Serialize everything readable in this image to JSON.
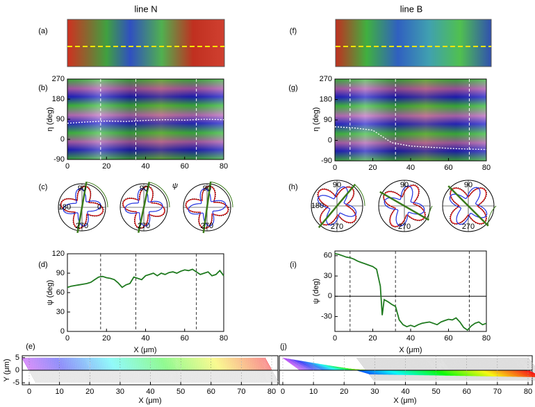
{
  "chart_data": [
    {
      "type": "image",
      "title": "line N",
      "label": "(a)"
    },
    {
      "type": "heatmap",
      "label": "(b)",
      "ylabel": "η (deg)",
      "xlim": [
        0,
        80
      ],
      "xticks": [
        0,
        20,
        40,
        60,
        80
      ],
      "ylim": [
        -90,
        270
      ],
      "yticks": [
        -90,
        0,
        90,
        180,
        270
      ],
      "markers": [
        17,
        35,
        66
      ],
      "series": [
        {
          "color": "#ffffff",
          "x": [
            0,
            10,
            20,
            30,
            40,
            50,
            60,
            70,
            80
          ],
          "values": [
            72,
            78,
            82,
            80,
            85,
            88,
            86,
            90,
            88
          ]
        }
      ]
    },
    {
      "type": "polar",
      "label": "(c)",
      "annotation": "ψ",
      "circles": [
        {
          "angles": [
            90,
            180,
            0,
            270
          ]
        },
        {
          "angles": [
            90,
            270
          ]
        },
        {
          "angles": [
            90,
            270
          ]
        }
      ]
    },
    {
      "type": "line",
      "label": "(d)",
      "ylabel": "ψ (deg)",
      "xlabel": "X (μm)",
      "xlim": [
        0,
        80
      ],
      "xticks": [
        0,
        20,
        40,
        60,
        80
      ],
      "ylim": [
        0,
        120
      ],
      "yticks": [
        0,
        30,
        60,
        90,
        120
      ],
      "color": "#1f7a1f",
      "markers": [
        17,
        35,
        66
      ],
      "x": [
        0,
        2,
        4,
        6,
        8,
        10,
        12,
        14,
        16,
        18,
        20,
        22,
        24,
        26,
        28,
        30,
        32,
        34,
        36,
        38,
        40,
        42,
        44,
        46,
        48,
        50,
        52,
        54,
        56,
        58,
        60,
        62,
        64,
        66,
        68,
        70,
        72,
        74,
        76,
        78,
        80
      ],
      "values": [
        68,
        70,
        71,
        72,
        73,
        74,
        76,
        80,
        84,
        85,
        83,
        82,
        80,
        75,
        68,
        72,
        74,
        84,
        82,
        80,
        86,
        88,
        90,
        86,
        90,
        88,
        91,
        92,
        90,
        93,
        95,
        94,
        96,
        92,
        88,
        90,
        92,
        86,
        88,
        94,
        86
      ]
    },
    {
      "type": "quiver",
      "label": "(e)",
      "xlabel": "X (μm)",
      "ylabel": "Y (μm)",
      "xlim": [
        0,
        80
      ],
      "xticks": [
        0,
        10,
        20,
        30,
        40,
        50,
        60,
        70,
        80
      ],
      "ylim": [
        -5.8,
        5.8
      ],
      "yticks": [
        -5,
        0,
        5
      ]
    },
    {
      "type": "image",
      "title": "line B",
      "label": "(f)"
    },
    {
      "type": "heatmap",
      "label": "(g)",
      "ylabel": "η (deg)",
      "xlim": [
        0,
        80
      ],
      "xticks": [
        0,
        20,
        40,
        60,
        80
      ],
      "ylim": [
        -90,
        270
      ],
      "yticks": [
        -90,
        0,
        90,
        180,
        270
      ],
      "markers": [
        8,
        32,
        71
      ],
      "series": [
        {
          "color": "#ffffff",
          "x": [
            0,
            10,
            20,
            30,
            40,
            50,
            60,
            70,
            80
          ],
          "values": [
            60,
            55,
            45,
            -10,
            -25,
            -30,
            -35,
            -38,
            -40
          ]
        }
      ]
    },
    {
      "type": "polar",
      "label": "(h)",
      "circles": [
        {
          "angles": [
            90,
            180,
            270
          ]
        },
        {
          "angles": [
            90,
            270
          ]
        },
        {
          "angles": [
            90,
            270
          ]
        }
      ]
    },
    {
      "type": "line",
      "label": "(i)",
      "ylabel": "ψ (deg)",
      "xlabel": "X (μm)",
      "xlim": [
        0,
        80
      ],
      "xticks": [
        0,
        20,
        40,
        60,
        80
      ],
      "ylim": [
        -52,
        67
      ],
      "yticks": [
        -30,
        0,
        30,
        60
      ],
      "color": "#1f7a1f",
      "markers": [
        8,
        32,
        71
      ],
      "zero_line": true,
      "x": [
        0,
        2,
        4,
        6,
        8,
        10,
        12,
        14,
        16,
        18,
        20,
        22,
        24,
        25,
        26,
        28,
        30,
        32,
        34,
        36,
        38,
        40,
        42,
        44,
        46,
        48,
        50,
        52,
        54,
        56,
        58,
        60,
        62,
        64,
        66,
        68,
        70,
        72,
        74,
        76,
        78,
        80
      ],
      "values": [
        63,
        62,
        60,
        58,
        57,
        55,
        52,
        50,
        48,
        46,
        44,
        40,
        15,
        -28,
        -5,
        -8,
        -12,
        -15,
        -35,
        -42,
        -45,
        -43,
        -45,
        -42,
        -40,
        -39,
        -38,
        -40,
        -42,
        -38,
        -36,
        -34,
        -35,
        -32,
        -38,
        -46,
        -50,
        -44,
        -40,
        -38,
        -42,
        -40
      ]
    },
    {
      "type": "quiver",
      "label": "(j)",
      "xlabel": "X (μm)",
      "xlim": [
        0,
        80
      ],
      "xticks": [
        0,
        10,
        20,
        30,
        40,
        50,
        60,
        70,
        80
      ],
      "ylim": [
        -5.8,
        5.8
      ]
    }
  ]
}
